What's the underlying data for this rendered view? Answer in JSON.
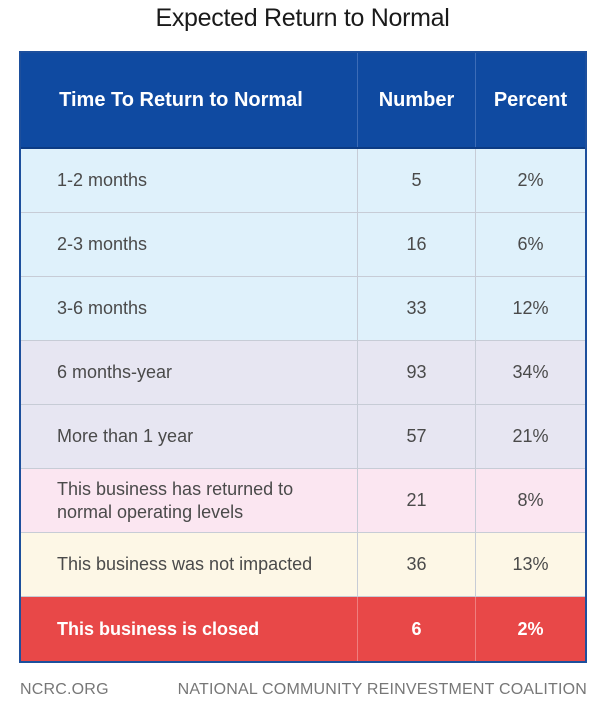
{
  "chart_data": {
    "type": "table",
    "title": "Expected Return to Normal",
    "columns": [
      "Time To Return to Normal",
      "Number",
      "Percent"
    ],
    "rows": [
      {
        "label": "1-2 months",
        "number": "5",
        "percent": "2%",
        "color": "#dff1fb"
      },
      {
        "label": "2-3 months",
        "number": "16",
        "percent": "6%",
        "color": "#dff1fb"
      },
      {
        "label": "3-6 months",
        "number": "33",
        "percent": "12%",
        "color": "#dff1fb"
      },
      {
        "label": "6 months-year",
        "number": "93",
        "percent": "34%",
        "color": "#e7e6f2"
      },
      {
        "label": "More than 1 year",
        "number": "57",
        "percent": "21%",
        "color": "#e7e6f2"
      },
      {
        "label": "This business has returned to normal operating levels",
        "number": "21",
        "percent": "8%",
        "color": "#fbe6f1"
      },
      {
        "label": "This business was not impacted",
        "number": "36",
        "percent": "13%",
        "color": "#fdf7e6"
      },
      {
        "label": "This business is closed",
        "number": "6",
        "percent": "2%",
        "color": "#e84848"
      }
    ]
  },
  "colors": {
    "header_bg": "#0f4aa1",
    "border": "#1d4f9c"
  },
  "footer": {
    "left": "NCRC.ORG",
    "right": "NATIONAL COMMUNITY REINVESTMENT COALITION"
  }
}
